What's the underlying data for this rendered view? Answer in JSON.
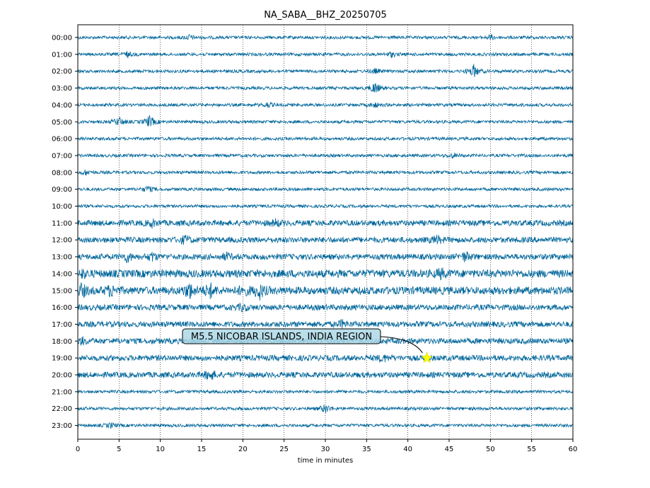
{
  "chart_data": {
    "type": "line",
    "title": "NA_SABA__BHZ_20250705",
    "xlabel": "time in minutes",
    "ylabel": "",
    "xlim": [
      0,
      60
    ],
    "x_ticks": [
      "0",
      "5",
      "10",
      "15",
      "20",
      "25",
      "30",
      "35",
      "40",
      "45",
      "50",
      "55",
      "60"
    ],
    "row_labels": [
      "00:00",
      "01:00",
      "02:00",
      "03:00",
      "04:00",
      "05:00",
      "06:00",
      "07:00",
      "08:00",
      "09:00",
      "10:00",
      "11:00",
      "12:00",
      "13:00",
      "14:00",
      "15:00",
      "16:00",
      "17:00",
      "18:00",
      "19:00",
      "20:00",
      "21:00",
      "22:00",
      "23:00"
    ],
    "grid": "vertical dotted lines every 5 minutes",
    "trace_color": "#00669a",
    "annotation": {
      "text": "M5.5 NICOBAR ISLANDS, INDIA REGION",
      "row": "19:00",
      "minute": 42.3,
      "marker": "star",
      "marker_color": "#ffff00"
    }
  }
}
